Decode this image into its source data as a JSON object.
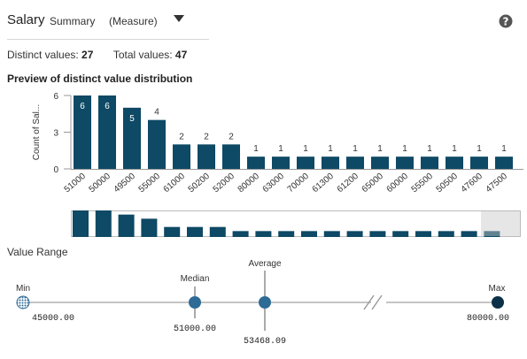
{
  "header": {
    "field_name": "Salary",
    "summary_label": "Summary",
    "measure_label": "(Measure)",
    "dropdown_icon": "caret-down-icon",
    "help_icon": "question-circle-icon"
  },
  "stats": {
    "distinct_label": "Distinct values:",
    "distinct_value": "27",
    "total_label": "Total values:",
    "total_value": "47"
  },
  "preview": {
    "title": "Preview of distinct value distribution"
  },
  "chart_data": {
    "type": "bar",
    "ylabel": "Count of Sal...",
    "yticks": [
      0,
      3,
      6
    ],
    "ylim": [
      0,
      6
    ],
    "categories": [
      "51000",
      "50000",
      "49500",
      "55000",
      "61000",
      "50200",
      "52000",
      "80000",
      "63000",
      "70000",
      "61300",
      "61200",
      "65000",
      "60000",
      "55500",
      "50500",
      "47600",
      "47500"
    ],
    "values": [
      6,
      6,
      5,
      4,
      2,
      2,
      2,
      1,
      1,
      1,
      1,
      1,
      1,
      1,
      1,
      1,
      1,
      1
    ],
    "bar_color": "#0e4965"
  },
  "overview": {
    "values": [
      6,
      6,
      5,
      4,
      2,
      2,
      2,
      1,
      1,
      1,
      1,
      1,
      1,
      1,
      1,
      1,
      1,
      1,
      1,
      1,
      1,
      1
    ],
    "bar_color": "#0e4965"
  },
  "value_range": {
    "title": "Value Range",
    "min_label": "Min",
    "min_value": "45000.00",
    "median_label": "Median",
    "median_value": "51000.00",
    "average_label": "Average",
    "average_value": "53468.09",
    "max_label": "Max",
    "max_value": "80000.00",
    "dot_color": "#2e6b96",
    "max_color": "#0b3148"
  }
}
